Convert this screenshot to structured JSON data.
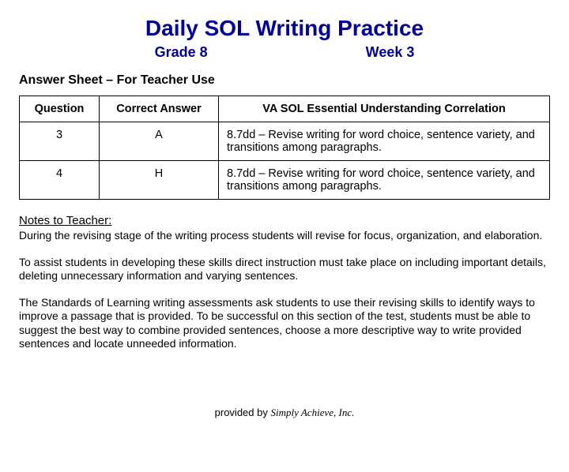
{
  "title": "Daily SOL Writing Practice",
  "title_color": "#000099",
  "subhead": {
    "grade": "Grade 8",
    "week": "Week 3"
  },
  "section_head": "Answer Sheet – For Teacher Use",
  "table": {
    "columns": [
      "Question",
      "Correct Answer",
      "VA SOL Essential Understanding Correlation"
    ],
    "rows": [
      {
        "q": "3",
        "a": "A",
        "c": "8.7dd – Revise writing for word choice, sentence variety, and transitions among paragraphs."
      },
      {
        "q": "4",
        "a": "H",
        "c": "8.7dd – Revise writing for word choice, sentence variety, and transitions among paragraphs."
      }
    ]
  },
  "notes": {
    "head": "Notes to Teacher:",
    "paragraphs": [
      "During the revising stage of the writing process students will revise for focus, organization, and elaboration.",
      "To assist students in developing these skills direct instruction must take place on including important details, deleting unnecessary information and varying sentences.",
      "The Standards of Learning writing assessments ask students to use their revising skills to identify ways to improve a passage that is provided.  To be successful on this section of the test, students must be able to suggest the best way to combine provided sentences, choose a more descriptive way to write provided sentences and locate unneeded information."
    ]
  },
  "footer": {
    "prefix": "provided by ",
    "company": "Simply Achieve, Inc."
  }
}
